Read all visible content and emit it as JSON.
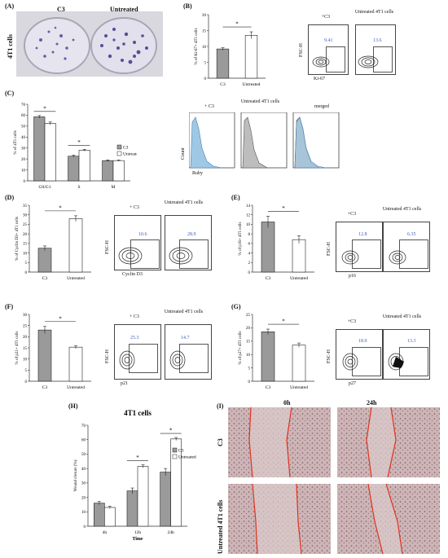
{
  "panels": {
    "A": {
      "label": "(A)",
      "col1": "C3",
      "col2": "Untreated",
      "row": "4T1 cells"
    },
    "B": {
      "label": "(B)",
      "flow_left_title": "+C3",
      "flow_right_title": "Untreated 4T1 cells",
      "flow_left_value": "9.41",
      "flow_right_value": "13.6",
      "flow_xlabel": "Ki-67",
      "flow_ylabel": "FSC-H"
    },
    "C": {
      "label": "(C)",
      "hist_titles": [
        "+ C3",
        "Untreated 4T1 cells",
        "merged"
      ],
      "hist_xlabel": "Ruby",
      "hist_ylabel": "Count"
    },
    "D": {
      "label": "(D)",
      "flow_left_title": "+ C3",
      "flow_right_title": "Untreated 4T1 cells",
      "flow_left_value": "10.6",
      "flow_right_value": "28.9",
      "flow_xlabel": "Cyclin D3",
      "flow_ylabel": "FSC-H"
    },
    "E": {
      "label": "(E)",
      "flow_left_title": "+C3",
      "flow_right_title": "Untreated 4T1 cells",
      "flow_left_value": "12.8",
      "flow_right_value": "6.35",
      "flow_xlabel": "p16",
      "flow_ylabel": "FSC-H"
    },
    "F": {
      "label": "(F)",
      "flow_left_title": "+ C3",
      "flow_right_title": "Untreated 4T1 cells",
      "flow_left_value": "25.3",
      "flow_right_value": "14.7",
      "flow_xlabel": "p21",
      "flow_ylabel": "FSC-H"
    },
    "G": {
      "label": "(G)",
      "flow_left_title": "+C3",
      "flow_right_title": "Untreated 4T1 cells",
      "flow_left_value": "18.9",
      "flow_right_value": "13.3",
      "flow_xlabel": "p27",
      "flow_ylabel": "FSC-H"
    },
    "H": {
      "label": "(H)"
    },
    "I": {
      "label": "(I)",
      "col1": "0h",
      "col2": "24h",
      "row1": "C3",
      "row2": "Untreated 4T1 cells"
    }
  },
  "chart_data": [
    {
      "id": "B",
      "type": "bar",
      "categories": [
        "C3",
        "Untreated"
      ],
      "values": [
        9.2,
        13.5
      ],
      "errors": [
        0.4,
        1.1
      ],
      "ylabel": "% of Ki-67+ 4T1 cells",
      "ylim": [
        0,
        20
      ],
      "yticks": [
        "0",
        "5",
        "10",
        "15",
        "20"
      ],
      "significance": "*",
      "colors": [
        "#9a9a9a",
        "#ffffff"
      ]
    },
    {
      "id": "C",
      "type": "bar",
      "categories": [
        "G0/G1",
        "S",
        "M"
      ],
      "series": [
        {
          "name": "C3",
          "values": [
            58.5,
            22.5,
            18.5
          ],
          "errors": [
            1.2,
            1.0,
            0.6
          ],
          "color": "#9a9a9a"
        },
        {
          "name": "Untreated",
          "values": [
            52.5,
            28.0,
            18.5
          ],
          "errors": [
            1.3,
            0.8,
            0.6
          ],
          "color": "#ffffff"
        }
      ],
      "ylabel": "% of 4T1 cells",
      "ylim": [
        0,
        70
      ],
      "yticks": [
        "0",
        "10",
        "20",
        "30",
        "40",
        "50",
        "60",
        "70"
      ],
      "significance": [
        "*",
        "*"
      ]
    },
    {
      "id": "D",
      "type": "bar",
      "categories": [
        "C3",
        "Untreated"
      ],
      "values": [
        12.5,
        28.0
      ],
      "errors": [
        1.2,
        1.5
      ],
      "ylabel": "% of Cyclin D3+ 4T1 cells",
      "ylim": [
        0,
        35
      ],
      "yticks": [
        "0",
        "5",
        "10",
        "15",
        "20",
        "25",
        "30",
        "35"
      ],
      "significance": "*",
      "colors": [
        "#9a9a9a",
        "#ffffff"
      ]
    },
    {
      "id": "E",
      "type": "bar",
      "categories": [
        "C3",
        "Untreated"
      ],
      "values": [
        10.5,
        6.8
      ],
      "errors": [
        1.2,
        0.8
      ],
      "ylabel": "% of p16+ 4T1 cells",
      "ylim": [
        0,
        14
      ],
      "yticks": [
        "0",
        "2",
        "4",
        "6",
        "8",
        "10",
        "12",
        "14"
      ],
      "significance": "*",
      "colors": [
        "#9a9a9a",
        "#ffffff"
      ]
    },
    {
      "id": "F",
      "type": "bar",
      "categories": [
        "C3",
        "Untreated"
      ],
      "values": [
        23.0,
        15.3
      ],
      "errors": [
        1.6,
        0.7
      ],
      "ylabel": "% of p21+ 4T1 cells",
      "ylim": [
        0,
        30
      ],
      "yticks": [
        "0",
        "5",
        "10",
        "15",
        "20",
        "25",
        "30"
      ],
      "significance": "*",
      "colors": [
        "#9a9a9a",
        "#ffffff"
      ]
    },
    {
      "id": "G",
      "type": "bar",
      "categories": [
        "C3",
        "Untreated"
      ],
      "values": [
        18.5,
        13.5
      ],
      "errors": [
        1.0,
        0.8
      ],
      "ylabel": "% of p27+ 4T1 cells",
      "ylim": [
        0,
        25
      ],
      "yticks": [
        "0",
        "5",
        "10",
        "15",
        "20",
        "25"
      ],
      "significance": "*",
      "colors": [
        "#9a9a9a",
        "#ffffff"
      ]
    },
    {
      "id": "H",
      "type": "bar",
      "title": "4T1 cells",
      "categories": [
        "4h",
        "12h",
        "24h"
      ],
      "series": [
        {
          "name": "C3",
          "values": [
            16.0,
            24.5,
            37.5
          ],
          "errors": [
            1.2,
            2.0,
            2.5
          ],
          "color": "#9a9a9a"
        },
        {
          "name": "Untreated",
          "values": [
            13.0,
            41.5,
            60.5
          ],
          "errors": [
            0.8,
            1.0,
            1.0
          ],
          "color": "#ffffff"
        }
      ],
      "xlabel": "Time",
      "ylabel": "Wound closure (%)",
      "ylim": [
        0,
        70
      ],
      "yticks": [
        "0",
        "10",
        "20",
        "30",
        "40",
        "50",
        "60",
        "70"
      ],
      "significance": [
        "*",
        "*"
      ]
    }
  ]
}
